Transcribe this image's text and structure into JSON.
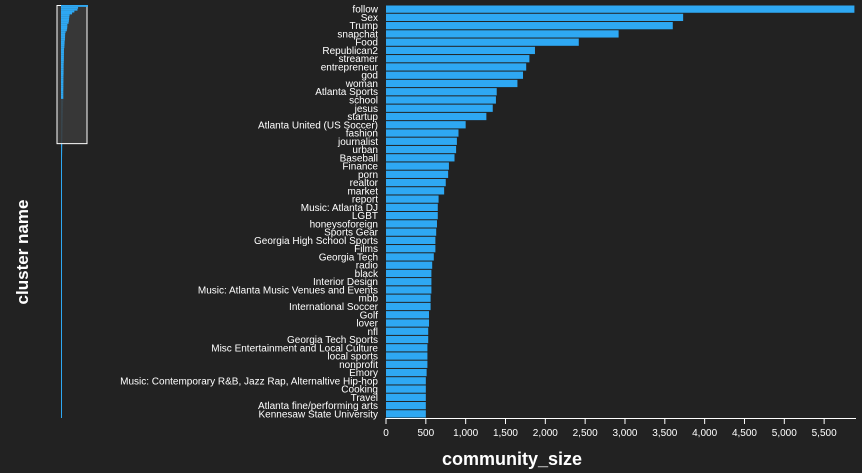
{
  "chart_data": {
    "type": "bar",
    "orientation": "horizontal",
    "xlabel": "community_size",
    "ylabel": "cluster name",
    "xlim": [
      0,
      5900
    ],
    "xticks": [
      0,
      500,
      1000,
      1500,
      2000,
      2500,
      3000,
      3500,
      4000,
      4500,
      5000,
      5500
    ],
    "xtick_labels": [
      "0",
      "500",
      "1,000",
      "1,500",
      "2,000",
      "2,500",
      "3,000",
      "3,500",
      "4,000",
      "4,500",
      "5,000",
      "5,500"
    ],
    "bar_color": "#2ea8f3",
    "categories": [
      "follow",
      "Sex",
      "Trump",
      "snapchat",
      "Food",
      "Republican2",
      "streamer",
      "entrepreneur",
      "god",
      "woman",
      "Atlanta Sports",
      "school",
      "jesus",
      "startup",
      "Atlanta United (US Soccer)",
      "fashion",
      "journalist",
      "urban",
      "Baseball",
      "Finance",
      "porn",
      "realtor",
      "market",
      "report",
      "Music: Atlanta DJ",
      "LGBT",
      "honeysoforeign",
      "Sports Gear",
      "Georgia High School Sports",
      "Films",
      "Georgia Tech",
      "radio",
      "black",
      "Interior Design",
      "Music: Atlanta Music Venues and Events",
      "mbb",
      "International Soccer",
      "Golf",
      "lover",
      "nfl",
      "Georgia Tech Sports",
      "Misc Entertainment and Local Culture",
      "local sports",
      "nonprofit",
      "Emory",
      "Music: Contemporary R&B, Jazz Rap, Alternaltive Hip-hop",
      "Cooking",
      "Travel",
      "Atlanta fine/performing arts",
      "Kennesaw State University"
    ],
    "values": [
      5880,
      3730,
      3600,
      2920,
      2420,
      1870,
      1800,
      1760,
      1720,
      1650,
      1390,
      1380,
      1340,
      1260,
      1000,
      910,
      890,
      880,
      860,
      790,
      780,
      750,
      730,
      660,
      650,
      650,
      640,
      630,
      620,
      620,
      600,
      580,
      570,
      570,
      570,
      560,
      560,
      540,
      540,
      530,
      530,
      520,
      520,
      520,
      510,
      500,
      500,
      500,
      500,
      500
    ],
    "overview": {
      "window_fraction": [
        0.0,
        0.165
      ]
    }
  }
}
